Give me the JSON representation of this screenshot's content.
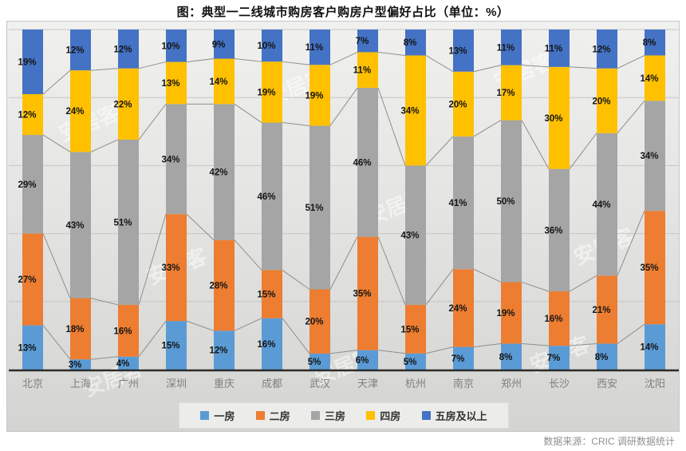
{
  "title": "图：典型一二线城市购房客户购房户型偏好占比（单位：%）",
  "footer": "数据来源：CRIC 调研数据统计",
  "watermark": "安居客",
  "chart_data": {
    "type": "bar",
    "subtype": "stacked-100-percent-column",
    "title": "图：典型一二线城市购房客户购房户型偏好占比（单位：%）",
    "categories": [
      "北京",
      "上海",
      "广州",
      "深圳",
      "重庆",
      "成都",
      "武汉",
      "天津",
      "杭州",
      "南京",
      "郑州",
      "长沙",
      "西安",
      "沈阳"
    ],
    "series": [
      {
        "name": "一房",
        "color": "#5B9BD5",
        "values": [
          13,
          3,
          4,
          15,
          12,
          16,
          5,
          6,
          5,
          7,
          8,
          7,
          8,
          14
        ]
      },
      {
        "name": "二房",
        "color": "#ED7D31",
        "values": [
          27,
          18,
          16,
          33,
          28,
          15,
          20,
          35,
          15,
          24,
          19,
          16,
          21,
          35
        ]
      },
      {
        "name": "三房",
        "color": "#A5A5A5",
        "values": [
          29,
          43,
          51,
          34,
          42,
          46,
          51,
          46,
          43,
          41,
          50,
          36,
          44,
          34
        ]
      },
      {
        "name": "四房",
        "color": "#FFC000",
        "values": [
          12,
          24,
          22,
          13,
          14,
          19,
          19,
          11,
          34,
          20,
          17,
          30,
          20,
          14
        ]
      },
      {
        "name": "五房及以上",
        "color": "#4472C4",
        "values": [
          19,
          12,
          12,
          10,
          9,
          10,
          11,
          7,
          8,
          13,
          11,
          11,
          12,
          8
        ]
      }
    ],
    "value_suffix": "%",
    "xlabel": "",
    "ylabel": "",
    "ylim": [
      0,
      100
    ],
    "grid": true,
    "gridline_step_percent": 20,
    "series_connector_lines": true,
    "legend_position": "bottom",
    "axis_label_color": "#7F7F7F",
    "gridline_color": "#C6C6C4",
    "connector_color": "#8E8E8E",
    "axis_line_color": "#2B2B2B",
    "data_label_color": "#141414"
  }
}
